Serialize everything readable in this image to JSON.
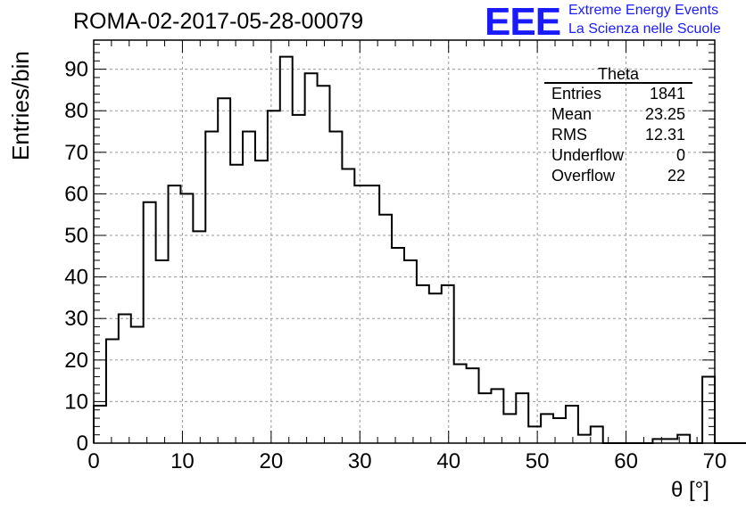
{
  "run_title": "ROMA-02-2017-05-28-00079",
  "logo": {
    "text": "EEE",
    "line1": "Extreme Energy Events",
    "line2": "La Scienza nelle Scuole",
    "color": "#1a1aff"
  },
  "stats": {
    "title": "Theta",
    "rows": [
      {
        "label": "Entries",
        "value": "1841"
      },
      {
        "label": "Mean",
        "value": "23.25"
      },
      {
        "label": "RMS",
        "value": "12.31"
      },
      {
        "label": "Underflow",
        "value": "0"
      },
      {
        "label": "Overflow",
        "value": "22"
      }
    ]
  },
  "chart_data": {
    "type": "bar",
    "style": "step-histogram",
    "xlabel": "θ [°]",
    "ylabel": "Entries/bin",
    "xlim": [
      0,
      70
    ],
    "ylim": [
      0,
      97
    ],
    "x_ticks": [
      0,
      10,
      20,
      30,
      40,
      50,
      60,
      70
    ],
    "y_ticks": [
      0,
      10,
      20,
      30,
      40,
      50,
      60,
      70,
      80,
      90
    ],
    "grid": true,
    "bin_width": 1.4,
    "values": [
      9,
      25,
      31,
      28,
      58,
      44,
      62,
      60,
      51,
      75,
      83,
      67,
      75,
      68,
      80,
      93,
      79,
      89,
      86,
      75,
      66,
      62,
      62,
      55,
      47,
      44,
      38,
      36,
      38,
      19,
      18,
      12,
      13,
      7,
      12,
      4,
      7,
      6,
      9,
      2,
      4,
      0,
      0,
      0,
      0,
      0,
      0,
      0,
      0,
      0,
      0,
      0,
      0,
      0,
      0,
      0,
      0,
      0,
      0,
      0,
      0,
      0,
      0,
      0,
      0,
      0,
      0,
      0,
      0,
      0
    ],
    "tail_values": {
      "start_bin": 44,
      "values": [
        0,
        1,
        1,
        2,
        0,
        16
      ]
    }
  }
}
